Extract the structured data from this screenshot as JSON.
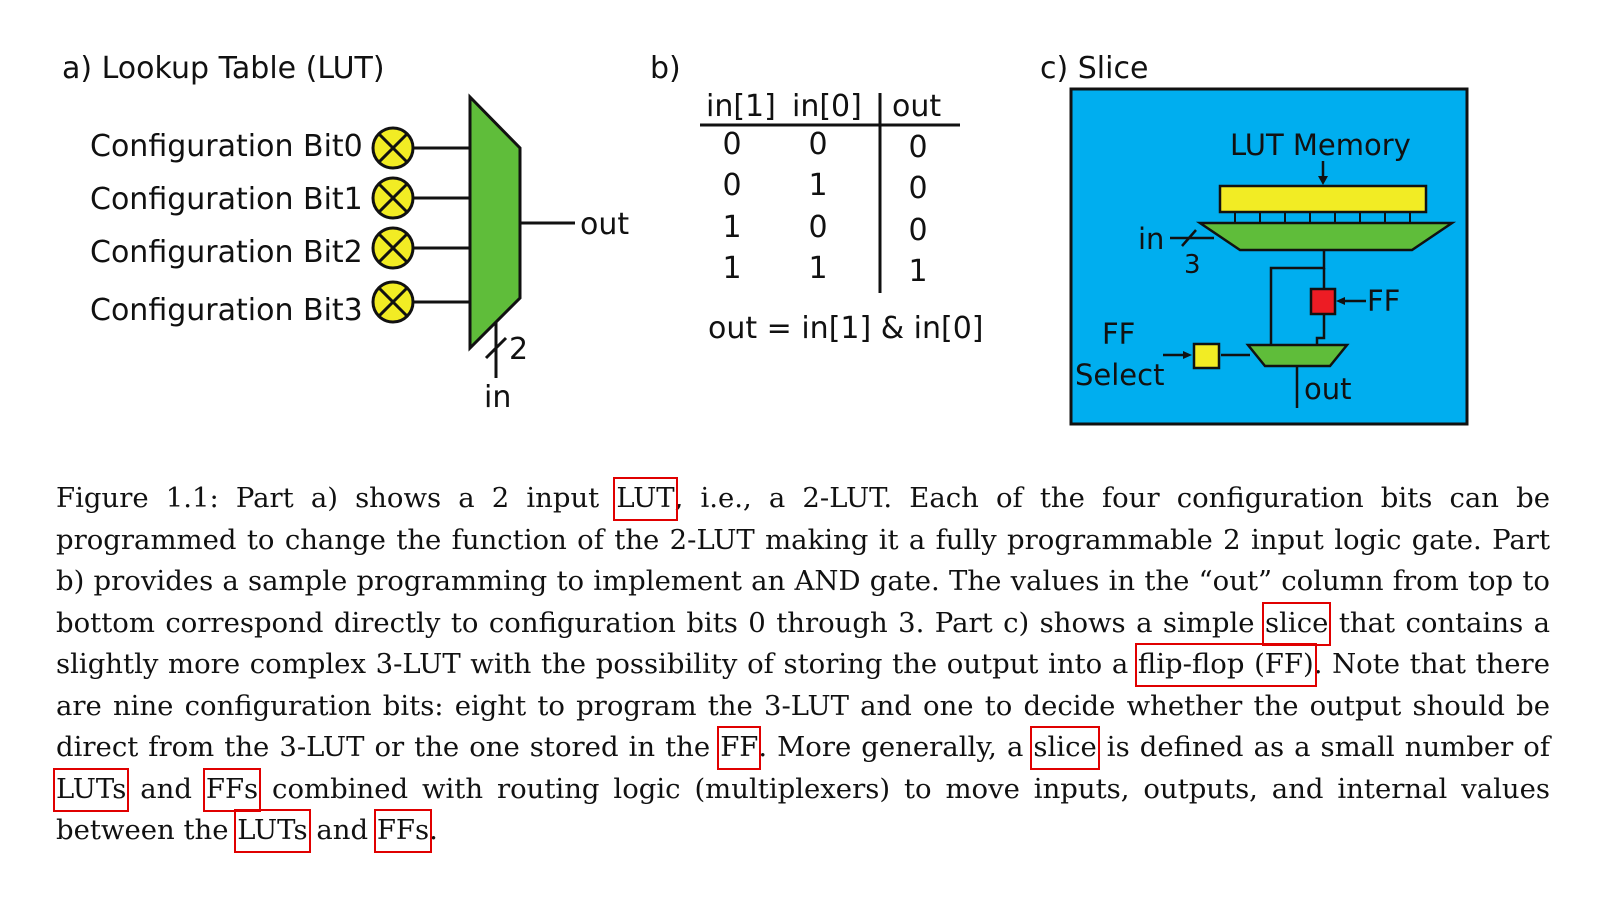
{
  "panel_a": {
    "title": "a) Lookup Table (LUT)",
    "config_bits": [
      "Configuration Bit0",
      "Configuration Bit1",
      "Configuration Bit2",
      "Configuration Bit3"
    ],
    "out_label": "out",
    "in_label": "in",
    "bus_width": "2"
  },
  "panel_b": {
    "title": "b)",
    "headers": [
      "in[1]",
      "in[0]",
      "out"
    ],
    "rows": [
      [
        "0",
        "0",
        "0"
      ],
      [
        "0",
        "1",
        "0"
      ],
      [
        "1",
        "0",
        "0"
      ],
      [
        "1",
        "1",
        "1"
      ]
    ],
    "equation": "out = in[1] & in[0]"
  },
  "panel_c": {
    "title": "c)  Slice",
    "lut_memory_label": "LUT Memory",
    "in_label": "in",
    "bus_width": "3",
    "ff_label": "FF",
    "ff_select_line1": "FF",
    "ff_select_line2": "Select",
    "out_label": "out"
  },
  "colors": {
    "mux_green": "#5fbd3a",
    "bit_yellow": "#f2ec24",
    "slice_blue": "#00aeef",
    "ff_red": "#ed1c24",
    "glossary_box": "#e00000"
  },
  "caption": {
    "t0": "Figure 1.1: Part a) shows a 2 input ",
    "g1": "LUT",
    "t1": ", i.e., a 2-LUT. Each of the four configuration bits can be programmed to change the function of the 2-LUT making it a fully programmable 2 input logic gate. Part b) provides a sample programming to implement an AND gate. The values in the “out” column from top to bottom correspond directly to configuration bits 0 through 3. Part c) shows a simple ",
    "g2": "slice",
    "t2": " that contains a slightly more complex 3-LUT with the possibility of storing the output into a ",
    "g3": "flip-flop (FF)",
    "t3": ". Note that there are nine configuration bits: eight to program the 3-LUT and one to decide whether the output should be direct from the 3-LUT or the one stored in the ",
    "g4": "FF",
    "t4": ". More generally, a ",
    "g5": "slice",
    "t5": " is defined as a small number of ",
    "g6": "LUTs",
    "t6": " and ",
    "g7": "FFs",
    "t7": " combined with routing logic (multiplexers) to move inputs, outputs, and internal values between the ",
    "g8": "LUTs",
    "t8": " and ",
    "g9": "FFs",
    "t9": "."
  }
}
